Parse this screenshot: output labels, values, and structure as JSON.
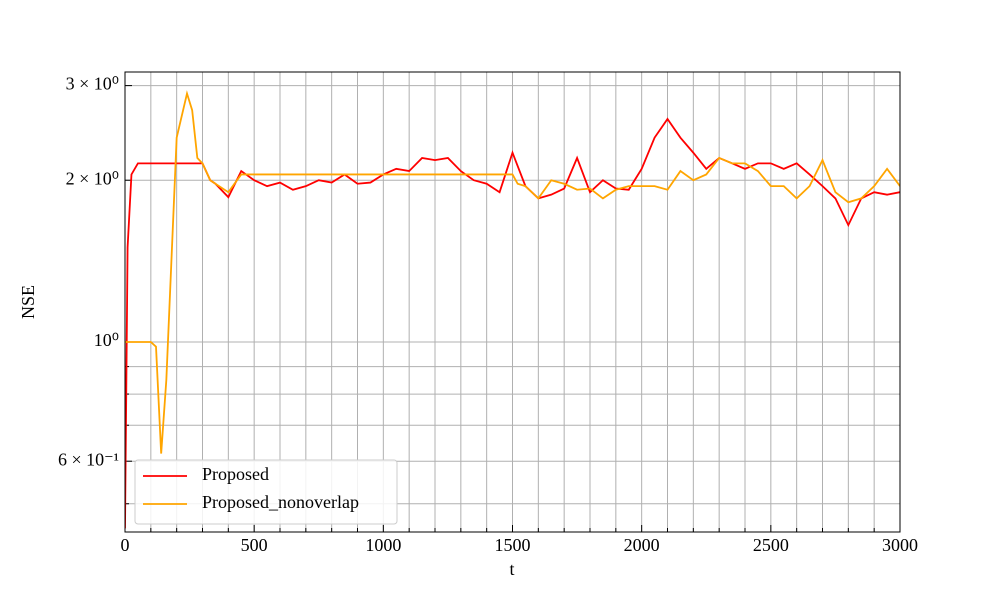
{
  "chart_data": {
    "type": "line",
    "x_label": "t",
    "y_label": "NSE",
    "log_y": true,
    "grid": true,
    "legend_position": "lower left",
    "xlim": [
      0,
      3000
    ],
    "xticks": [
      0,
      500,
      1000,
      1500,
      2000,
      2500,
      3000
    ],
    "xminor_ticks": [
      100,
      200,
      300,
      400,
      600,
      700,
      800,
      900,
      1100,
      1200,
      1300,
      1400,
      1600,
      1700,
      1800,
      1900,
      2100,
      2200,
      2300,
      2400,
      2600,
      2700,
      2800,
      2900
    ],
    "ylim": [
      0.443,
      3.18
    ],
    "yticks": [
      {
        "value": 0.6,
        "label": "6 × 10⁻¹"
      },
      {
        "value": 1,
        "label": "10⁰"
      },
      {
        "value": 2,
        "label": "2 × 10⁰"
      },
      {
        "value": 3,
        "label": "3 × 10⁰"
      }
    ],
    "yminor_ticks": [
      0.5,
      0.7,
      0.8,
      0.9
    ],
    "series": [
      {
        "name": "Proposed",
        "color": "#ff0000",
        "x": [
          0,
          10,
          25,
          50,
          100,
          150,
          200,
          250,
          300,
          330,
          350,
          400,
          450,
          500,
          550,
          600,
          650,
          700,
          750,
          800,
          850,
          900,
          950,
          1000,
          1050,
          1100,
          1150,
          1200,
          1250,
          1300,
          1350,
          1400,
          1450,
          1500,
          1550,
          1600,
          1650,
          1700,
          1750,
          1800,
          1850,
          1900,
          1950,
          2000,
          2050,
          2100,
          2150,
          2200,
          2250,
          2300,
          2350,
          2400,
          2450,
          2500,
          2550,
          2600,
          2650,
          2700,
          2750,
          2800,
          2850,
          2900,
          2950,
          3000
        ],
        "values": [
          0.45,
          1.5,
          2.05,
          2.15,
          2.15,
          2.15,
          2.15,
          2.15,
          2.15,
          2.0,
          1.97,
          1.86,
          2.08,
          2.0,
          1.95,
          1.98,
          1.92,
          1.95,
          2.0,
          1.98,
          2.05,
          1.97,
          1.98,
          2.05,
          2.1,
          2.08,
          2.2,
          2.18,
          2.2,
          2.08,
          2.0,
          1.97,
          1.9,
          2.25,
          1.95,
          1.85,
          1.88,
          1.93,
          2.2,
          1.9,
          2.0,
          1.93,
          1.92,
          2.1,
          2.4,
          2.6,
          2.4,
          2.25,
          2.1,
          2.2,
          2.15,
          2.1,
          2.15,
          2.15,
          2.1,
          2.15,
          2.05,
          1.95,
          1.85,
          1.65,
          1.85,
          1.9,
          1.88,
          1.9
        ]
      },
      {
        "name": "Proposed_nonoverlap",
        "color": "#ffa500",
        "x": [
          0,
          50,
          100,
          120,
          140,
          160,
          200,
          240,
          260,
          280,
          300,
          330,
          350,
          400,
          450,
          500,
          1000,
          1500,
          1520,
          1550,
          1600,
          1650,
          1700,
          1750,
          1800,
          1850,
          1900,
          1950,
          2000,
          2050,
          2100,
          2150,
          2200,
          2250,
          2300,
          2350,
          2400,
          2450,
          2500,
          2550,
          2600,
          2650,
          2700,
          2750,
          2800,
          2850,
          2900,
          2950,
          3000
        ],
        "values": [
          1.0,
          1.0,
          1.0,
          0.98,
          0.62,
          0.85,
          2.4,
          2.9,
          2.7,
          2.2,
          2.15,
          2.0,
          1.97,
          1.9,
          2.05,
          2.05,
          2.05,
          2.05,
          1.97,
          1.95,
          1.85,
          2.0,
          1.97,
          1.92,
          1.93,
          1.85,
          1.92,
          1.95,
          1.95,
          1.95,
          1.92,
          2.08,
          2.0,
          2.05,
          2.2,
          2.15,
          2.15,
          2.08,
          1.95,
          1.95,
          1.85,
          1.95,
          2.18,
          1.9,
          1.82,
          1.85,
          1.95,
          2.1,
          1.95
        ]
      }
    ]
  }
}
